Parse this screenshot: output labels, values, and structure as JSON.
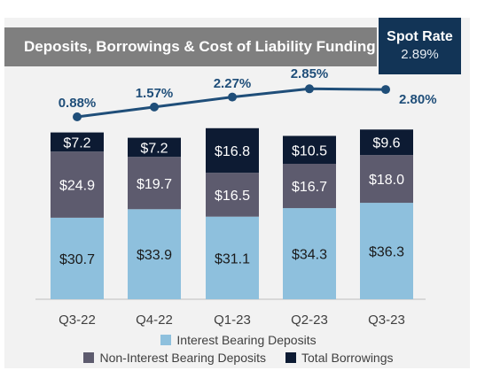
{
  "header": {
    "title": "Deposits, Borrowings & Cost of Liability Funding",
    "spot_label": "Spot Rate",
    "spot_value": "2.89%"
  },
  "colors": {
    "interest_bearing": "#8ec0dd",
    "non_interest_bearing": "#5d5b6e",
    "borrowings": "#0d1b33",
    "line": "#1f4e79",
    "title_bg": "#7f7f7f",
    "spot_bg": "#123456"
  },
  "legend": {
    "interest_bearing": "Interest Bearing Deposits",
    "non_interest_bearing": "Non-Interest Bearing Deposits",
    "borrowings": "Total Borrowings"
  },
  "chart_data": {
    "type": "bar",
    "stacked": true,
    "categories": [
      "Q3-22",
      "Q4-22",
      "Q1-23",
      "Q2-23",
      "Q3-23"
    ],
    "series": [
      {
        "name": "Interest Bearing Deposits",
        "values": [
          30.7,
          33.9,
          31.1,
          34.3,
          36.3
        ],
        "labels": [
          "$30.7",
          "$33.9",
          "$31.1",
          "$34.3",
          "$36.3"
        ]
      },
      {
        "name": "Non-Interest Bearing Deposits",
        "values": [
          24.9,
          19.7,
          16.5,
          16.7,
          18.0
        ],
        "labels": [
          "$24.9",
          "$19.7",
          "$16.5",
          "$16.7",
          "$18.0"
        ]
      },
      {
        "name": "Total Borrowings",
        "values": [
          7.2,
          7.2,
          16.8,
          10.5,
          9.6
        ],
        "labels": [
          "$7.2",
          "$7.2",
          "$16.8",
          "$10.5",
          "$9.6"
        ]
      }
    ],
    "line": {
      "values": [
        0.88,
        1.57,
        2.27,
        2.85,
        2.8
      ],
      "labels": [
        "0.88%",
        "1.57%",
        "2.27%",
        "2.85%",
        "2.80%"
      ]
    },
    "ylim": [
      0,
      67
    ],
    "legend_position": "bottom",
    "grid": false
  }
}
